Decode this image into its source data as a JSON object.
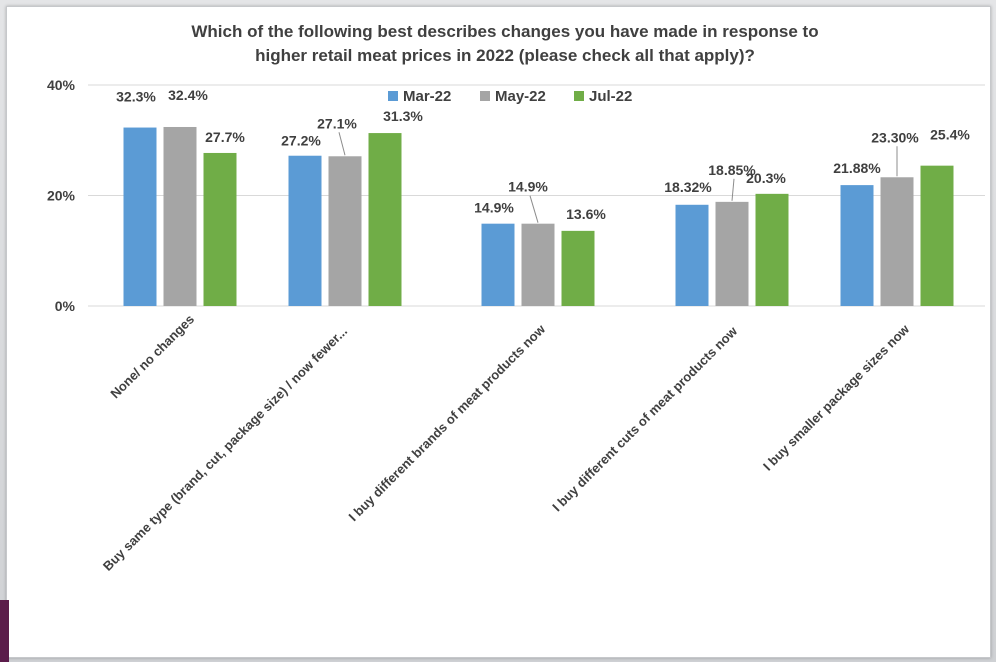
{
  "chart_data": {
    "type": "bar",
    "title_lines": [
      "Which of the following best describes changes you have made in response to",
      "higher retail meat prices in 2022 (please check all that apply)?"
    ],
    "categories": [
      "None/ no changes",
      "Buy same type (brand, cut, package size) / now fewer...",
      "I buy different brands of meat products now",
      "I buy different cuts of meat products now",
      "I buy smaller package sizes now"
    ],
    "series": [
      {
        "name": "Mar-22",
        "color": "#5b9bd5",
        "values": [
          32.3,
          27.2,
          14.9,
          18.32,
          21.88
        ],
        "labels": [
          "32.3%",
          "27.2%",
          "14.9%",
          "18.32%",
          "21.88%"
        ]
      },
      {
        "name": "May-22",
        "color": "#a5a5a5",
        "values": [
          32.4,
          27.1,
          14.9,
          18.85,
          23.3
        ],
        "labels": [
          "32.4%",
          "27.1%",
          "14.9%",
          "18.85%",
          "23.30%"
        ]
      },
      {
        "name": "Jul-22",
        "color": "#70ad47",
        "values": [
          27.7,
          31.3,
          13.6,
          20.3,
          25.4
        ],
        "labels": [
          "27.7%",
          "31.3%",
          "13.6%",
          "20.3%",
          "25.4%"
        ]
      }
    ],
    "yticks": [
      "0%",
      "20%",
      "40%"
    ],
    "ylim": [
      0,
      40
    ],
    "legend_position": "top",
    "grid": true
  }
}
